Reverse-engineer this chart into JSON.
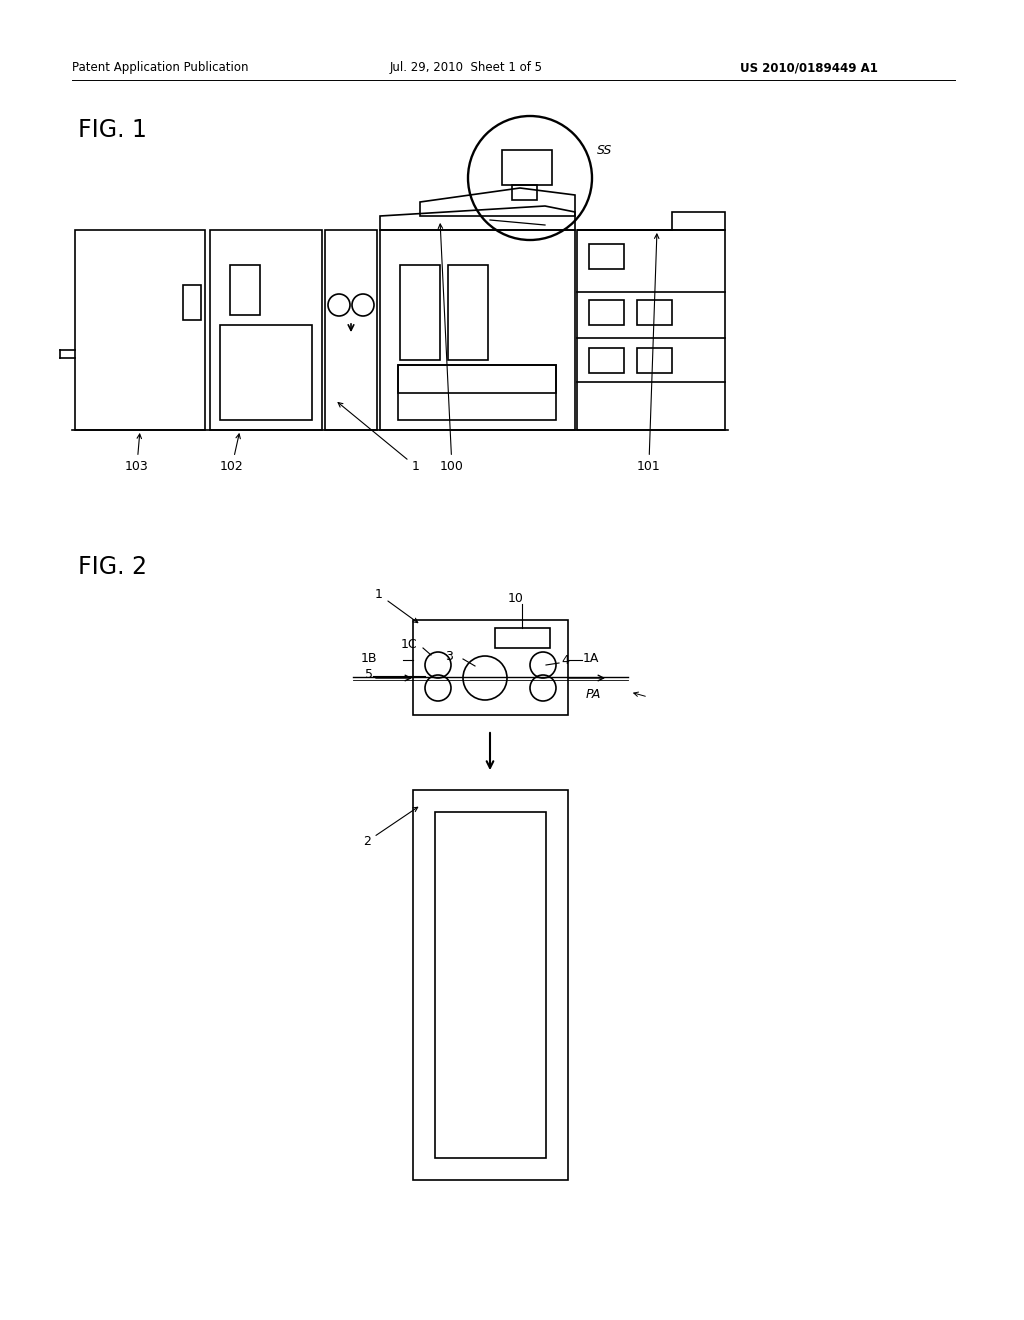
{
  "background_color": "#ffffff",
  "line_color": "#000000",
  "header_left": "Patent Application Publication",
  "header_mid": "Jul. 29, 2010  Sheet 1 of 5",
  "header_right": "US 2010/0189449 A1",
  "fig1_label": "FIG. 1",
  "fig2_label": "FIG. 2",
  "lw": 1.2
}
